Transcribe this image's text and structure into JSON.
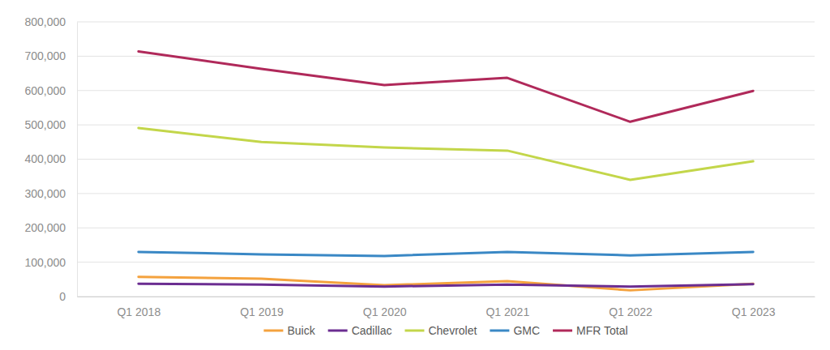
{
  "chart_data": {
    "type": "line",
    "categories": [
      "Q1 2018",
      "Q1 2019",
      "Q1 2020",
      "Q1 2021",
      "Q1 2022",
      "Q1 2023"
    ],
    "series": [
      {
        "name": "Buick",
        "color": "#f4a23e",
        "values": [
          57000,
          52000,
          33000,
          45000,
          18000,
          37000
        ]
      },
      {
        "name": "Cadillac",
        "color": "#6b2d91",
        "values": [
          37000,
          35000,
          29000,
          35000,
          29000,
          36000
        ]
      },
      {
        "name": "Chevrolet",
        "color": "#c3d64a",
        "values": [
          491000,
          450000,
          434000,
          425000,
          340000,
          394000
        ]
      },
      {
        "name": "GMC",
        "color": "#3a88c5",
        "values": [
          130000,
          123000,
          118000,
          130000,
          120000,
          130000
        ]
      },
      {
        "name": "MFR Total",
        "color": "#b0295a",
        "values": [
          714000,
          663000,
          616000,
          637000,
          509000,
          599000
        ]
      }
    ],
    "ylim": [
      0,
      800000
    ],
    "yticks": [
      0,
      {
        "value": 100000,
        "label": "100,000"
      },
      {
        "value": 200000,
        "label": "200,000"
      },
      {
        "value": 300000,
        "label": "300,000"
      },
      {
        "value": 400000,
        "label": "400,000"
      },
      {
        "value": 500000,
        "label": "500,000"
      },
      {
        "value": 600000,
        "label": "600,000"
      },
      {
        "value": 700000,
        "label": "700,000"
      },
      {
        "value": 800000,
        "label": "800,000"
      }
    ],
    "grid": true,
    "legend": "bottom"
  }
}
